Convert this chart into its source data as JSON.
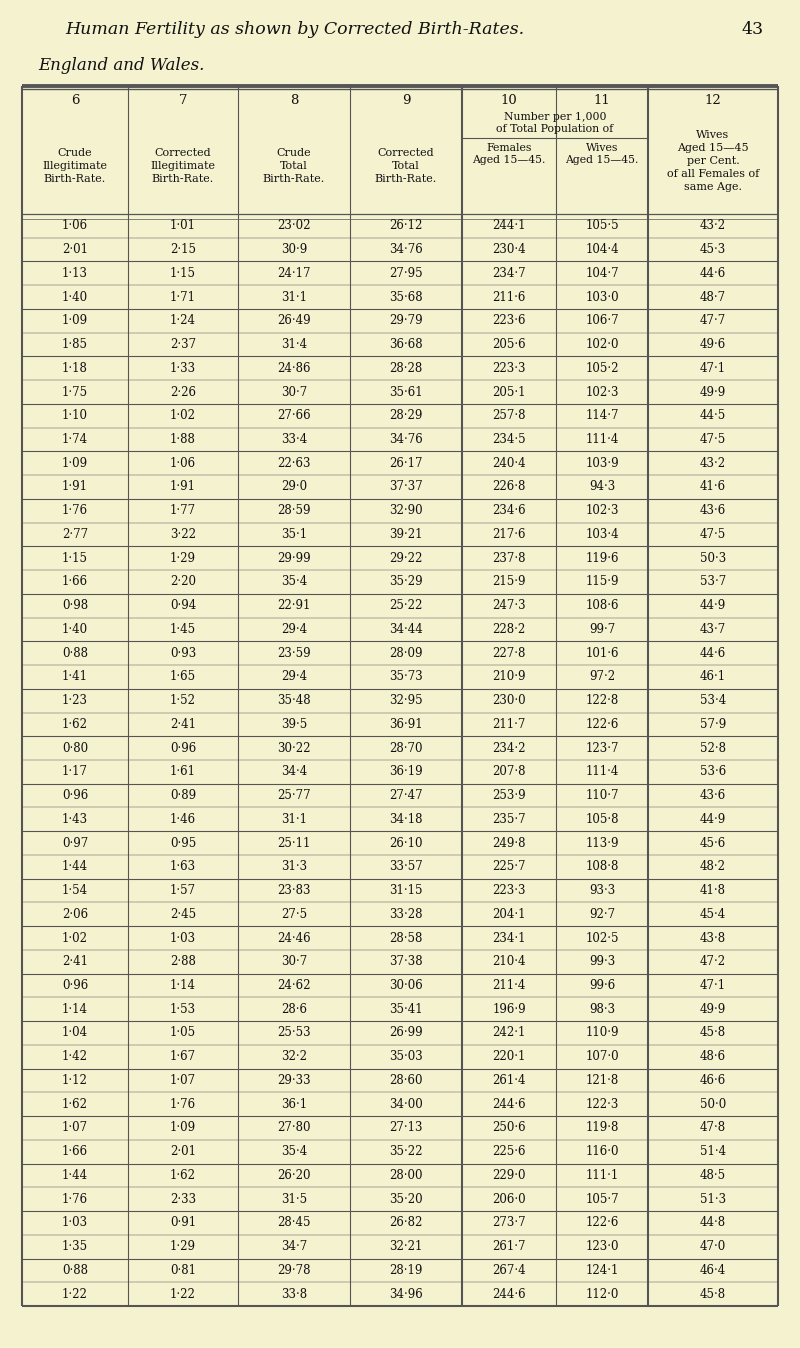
{
  "page_header": "Human Fertility as shown by Corrected Birth-Rates.",
  "page_number": "43",
  "section_header": "England and Wales.",
  "bg_color": "#f5f2d0",
  "text_color": "#111111",
  "line_color": "#555555",
  "rows": [
    [
      "1·06",
      "1·01",
      "23·02",
      "26·12",
      "244·1",
      "105·5",
      "43·2"
    ],
    [
      "2·01",
      "2·15",
      "30·9",
      "34·76",
      "230·4",
      "104·4",
      "45·3"
    ],
    [
      "1·13",
      "1·15",
      "24·17",
      "27·95",
      "234·7",
      "104·7",
      "44·6"
    ],
    [
      "1·40",
      "1·71",
      "31·1",
      "35·68",
      "211·6",
      "103·0",
      "48·7"
    ],
    [
      "1·09",
      "1·24",
      "26·49",
      "29·79",
      "223·6",
      "106·7",
      "47·7"
    ],
    [
      "1·85",
      "2·37",
      "31·4",
      "36·68",
      "205·6",
      "102·0",
      "49·6"
    ],
    [
      "1·18",
      "1·33",
      "24·86",
      "28·28",
      "223·3",
      "105·2",
      "47·1"
    ],
    [
      "1·75",
      "2·26",
      "30·7",
      "35·61",
      "205·1",
      "102·3",
      "49·9"
    ],
    [
      "1·10",
      "1·02",
      "27·66",
      "28·29",
      "257·8",
      "114·7",
      "44·5"
    ],
    [
      "1·74",
      "1·88",
      "33·4",
      "34·76",
      "234·5",
      "111·4",
      "47·5"
    ],
    [
      "1·09",
      "1·06",
      "22·63",
      "26·17",
      "240·4",
      "103·9",
      "43·2"
    ],
    [
      "1·91",
      "1·91",
      "29·0",
      "37·37",
      "226·8",
      "94·3",
      "41·6"
    ],
    [
      "1·76",
      "1·77",
      "28·59",
      "32·90",
      "234·6",
      "102·3",
      "43·6"
    ],
    [
      "2·77",
      "3·22",
      "35·1",
      "39·21",
      "217·6",
      "103·4",
      "47·5"
    ],
    [
      "1·15",
      "1·29",
      "29·99",
      "29·22",
      "237·8",
      "119·6",
      "50·3"
    ],
    [
      "1·66",
      "2·20",
      "35·4",
      "35·29",
      "215·9",
      "115·9",
      "53·7"
    ],
    [
      "0·98",
      "0·94",
      "22·91",
      "25·22",
      "247·3",
      "108·6",
      "44·9"
    ],
    [
      "1·40",
      "1·45",
      "29·4",
      "34·44",
      "228·2",
      "99·7",
      "43·7"
    ],
    [
      "0·88",
      "0·93",
      "23·59",
      "28·09",
      "227·8",
      "101·6",
      "44·6"
    ],
    [
      "1·41",
      "1·65",
      "29·4",
      "35·73",
      "210·9",
      "97·2",
      "46·1"
    ],
    [
      "1·23",
      "1·52",
      "35·48",
      "32·95",
      "230·0",
      "122·8",
      "53·4"
    ],
    [
      "1·62",
      "2·41",
      "39·5",
      "36·91",
      "211·7",
      "122·6",
      "57·9"
    ],
    [
      "0·80",
      "0·96",
      "30·22",
      "28·70",
      "234·2",
      "123·7",
      "52·8"
    ],
    [
      "1·17",
      "1·61",
      "34·4",
      "36·19",
      "207·8",
      "111·4",
      "53·6"
    ],
    [
      "0·96",
      "0·89",
      "25·77",
      "27·47",
      "253·9",
      "110·7",
      "43·6"
    ],
    [
      "1·43",
      "1·46",
      "31·1",
      "34·18",
      "235·7",
      "105·8",
      "44·9"
    ],
    [
      "0·97",
      "0·95",
      "25·11",
      "26·10",
      "249·8",
      "113·9",
      "45·6"
    ],
    [
      "1·44",
      "1·63",
      "31·3",
      "33·57",
      "225·7",
      "108·8",
      "48·2"
    ],
    [
      "1·54",
      "1·57",
      "23·83",
      "31·15",
      "223·3",
      "93·3",
      "41·8"
    ],
    [
      "2·06",
      "2·45",
      "27·5",
      "33·28",
      "204·1",
      "92·7",
      "45·4"
    ],
    [
      "1·02",
      "1·03",
      "24·46",
      "28·58",
      "234·1",
      "102·5",
      "43·8"
    ],
    [
      "2·41",
      "2·88",
      "30·7",
      "37·38",
      "210·4",
      "99·3",
      "47·2"
    ],
    [
      "0·96",
      "1·14",
      "24·62",
      "30·06",
      "211·4",
      "99·6",
      "47·1"
    ],
    [
      "1·14",
      "1·53",
      "28·6",
      "35·41",
      "196·9",
      "98·3",
      "49·9"
    ],
    [
      "1·04",
      "1·05",
      "25·53",
      "26·99",
      "242·1",
      "110·9",
      "45·8"
    ],
    [
      "1·42",
      "1·67",
      "32·2",
      "35·03",
      "220·1",
      "107·0",
      "48·6"
    ],
    [
      "1·12",
      "1·07",
      "29·33",
      "28·60",
      "261·4",
      "121·8",
      "46·6"
    ],
    [
      "1·62",
      "1·76",
      "36·1",
      "34·00",
      "244·6",
      "122·3",
      "50·0"
    ],
    [
      "1·07",
      "1·09",
      "27·80",
      "27·13",
      "250·6",
      "119·8",
      "47·8"
    ],
    [
      "1·66",
      "2·01",
      "35·4",
      "35·22",
      "225·6",
      "116·0",
      "51·4"
    ],
    [
      "1·44",
      "1·62",
      "26·20",
      "28·00",
      "229·0",
      "111·1",
      "48·5"
    ],
    [
      "1·76",
      "2·33",
      "31·5",
      "35·20",
      "206·0",
      "105·7",
      "51·3"
    ],
    [
      "1·03",
      "0·91",
      "28·45",
      "26·82",
      "273·7",
      "122·6",
      "44·8"
    ],
    [
      "1·35",
      "1·29",
      "34·7",
      "32·21",
      "261·7",
      "123·0",
      "47·0"
    ],
    [
      "0·88",
      "0·81",
      "29·78",
      "28·19",
      "267·4",
      "124·1",
      "46·4"
    ],
    [
      "1·22",
      "1·22",
      "33·8",
      "34·96",
      "244·6",
      "112·0",
      "45·8"
    ]
  ]
}
